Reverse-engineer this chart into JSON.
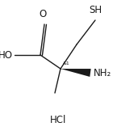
{
  "hcl_label": "HCl",
  "background_color": "#ffffff",
  "line_color": "#1a1a1a",
  "text_color": "#1a1a1a",
  "figsize": [
    1.45,
    1.62
  ],
  "dpi": 100,
  "stereo_label": "&1",
  "o_label": "O",
  "ho_label": "HO",
  "sh_label": "SH",
  "nh2_label": "NH₂"
}
